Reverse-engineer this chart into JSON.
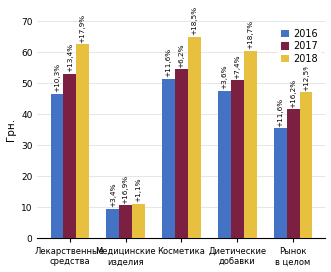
{
  "categories": [
    "Лекарственные\nсредства",
    "Медицинские\nизделия",
    "Косметика",
    "Диетические\nдобавки",
    "Рынок\nв целом"
  ],
  "values_2016": [
    46.5,
    9.5,
    51.5,
    47.5,
    35.5
  ],
  "values_2017": [
    53.0,
    10.5,
    54.5,
    51.0,
    41.5
  ],
  "values_2018": [
    62.5,
    11.0,
    65.0,
    60.5,
    47.0
  ],
  "labels_2016": [
    "+10,3%",
    "+3,4%",
    "+11,6%",
    "+3,6%",
    "+11,6%"
  ],
  "labels_2017": [
    "+13,4%",
    "+16,9%",
    "+6,2%",
    "+7,4%",
    "+16,2%"
  ],
  "labels_2018": [
    "+17,9%",
    "+1,1%",
    "+18,5%",
    "+18,7%",
    "+12,5%"
  ],
  "color_2016": "#4472C4",
  "color_2017": "#7B2040",
  "color_2018": "#E8C040",
  "ylabel": "Грн.",
  "ylim": [
    0,
    70
  ],
  "yticks": [
    0,
    10,
    20,
    30,
    40,
    50,
    60,
    70
  ],
  "legend_labels": [
    "2016",
    "2017",
    "2018"
  ],
  "bar_width": 0.23,
  "annotation_fontsize": 5.2,
  "label_fontsize": 6.0,
  "legend_fontsize": 7.0,
  "ylabel_fontsize": 7.5,
  "tick_fontsize": 6.5
}
